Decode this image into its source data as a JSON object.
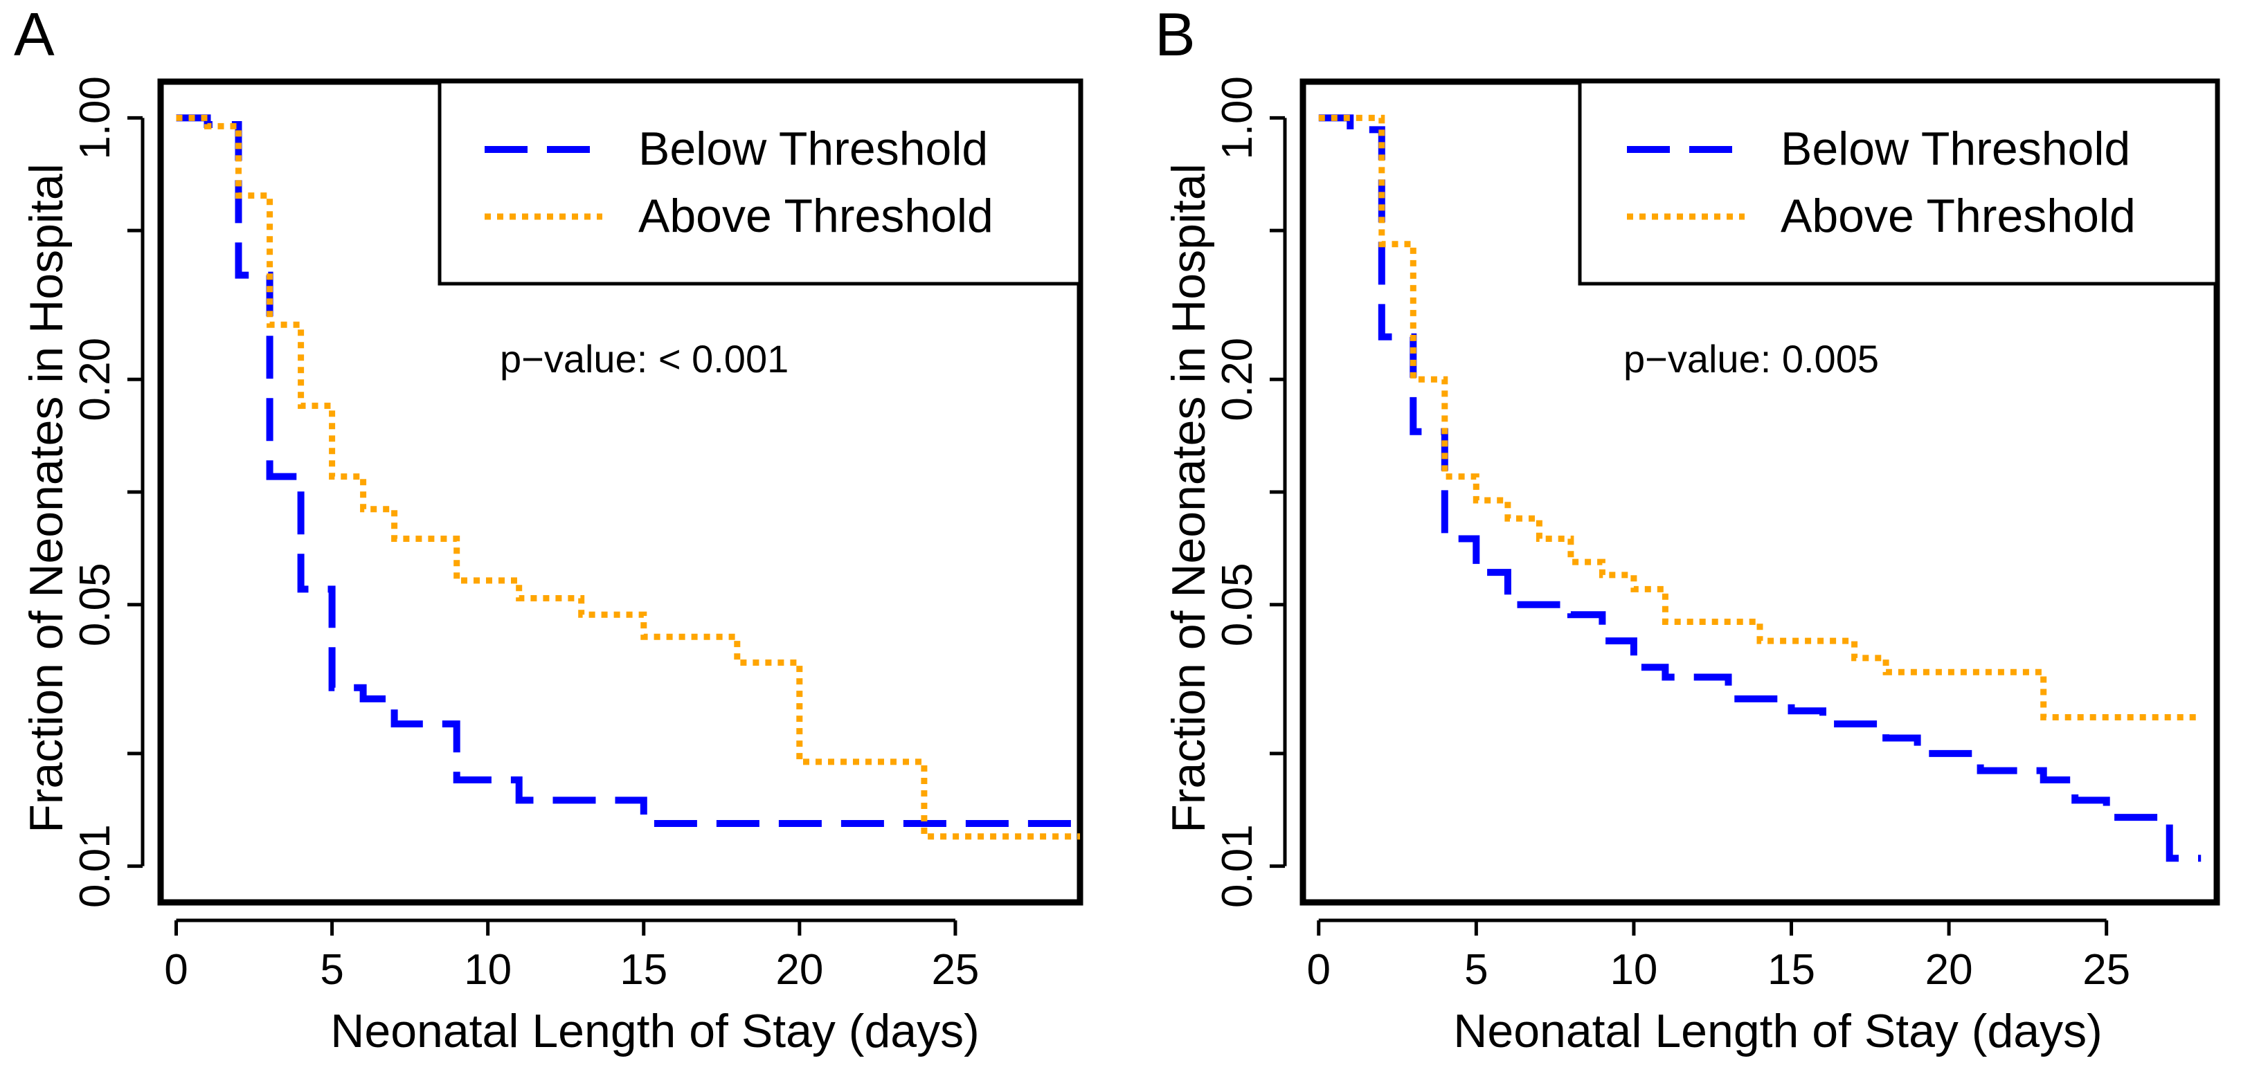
{
  "figure": {
    "panels": [
      "A",
      "B"
    ]
  },
  "chart_data": [
    {
      "type": "line",
      "panel_label": "A",
      "title": "",
      "xlabel": "Neonatal Length of Stay (days)",
      "ylabel": "Fraction of Neonates in Hospital",
      "y_scale": "log",
      "xlim": [
        -0.5,
        29
      ],
      "ylim": [
        0.008,
        1.25
      ],
      "x_ticks": [
        0,
        5,
        10,
        15,
        20,
        25
      ],
      "x_tick_labels": [
        "0",
        "5",
        "10",
        "15",
        "20",
        "25"
      ],
      "y_ticks_major": [
        1.0,
        0.2,
        0.05,
        0.01
      ],
      "y_tick_labels": [
        "1.00",
        "0.20",
        "0.05",
        "0.01"
      ],
      "y_ticks_minor": [
        0.5,
        0.1,
        0.02
      ],
      "grid": false,
      "legend_position": "top-right",
      "annotation": "p−value: < 0.001",
      "series": [
        {
          "name": "Below Threshold",
          "color": "#0000ff",
          "dash": "long-dash",
          "steps": [
            [
              0,
              1.0
            ],
            [
              1,
              0.96
            ],
            [
              2,
              0.38
            ],
            [
              3,
              0.11
            ],
            [
              4,
              0.055
            ],
            [
              5,
              0.03
            ],
            [
              6,
              0.028
            ],
            [
              7,
              0.024
            ],
            [
              9,
              0.017
            ],
            [
              11,
              0.015
            ],
            [
              15,
              0.013
            ],
            [
              29,
              0.013
            ]
          ]
        },
        {
          "name": "Above Threshold",
          "color": "#ffa500",
          "dash": "dotted",
          "steps": [
            [
              0,
              1.0
            ],
            [
              1,
              0.95
            ],
            [
              2,
              0.62
            ],
            [
              3,
              0.28
            ],
            [
              4,
              0.17
            ],
            [
              5,
              0.11
            ],
            [
              6,
              0.09
            ],
            [
              7,
              0.075
            ],
            [
              9,
              0.058
            ],
            [
              11,
              0.052
            ],
            [
              13,
              0.047
            ],
            [
              15,
              0.041
            ],
            [
              18,
              0.035
            ],
            [
              20,
              0.019
            ],
            [
              24,
              0.012
            ],
            [
              29,
              0.012
            ]
          ]
        }
      ]
    },
    {
      "type": "line",
      "panel_label": "B",
      "title": "",
      "xlabel": "Neonatal Length of Stay (days)",
      "ylabel": "Fraction of Neonates in Hospital",
      "y_scale": "log",
      "xlim": [
        -0.5,
        28.5
      ],
      "ylim": [
        0.008,
        1.25
      ],
      "x_ticks": [
        0,
        5,
        10,
        15,
        20,
        25
      ],
      "x_tick_labels": [
        "0",
        "5",
        "10",
        "15",
        "20",
        "25"
      ],
      "y_ticks_major": [
        1.0,
        0.2,
        0.05,
        0.01
      ],
      "y_tick_labels": [
        "1.00",
        "0.20",
        "0.05",
        "0.01"
      ],
      "y_ticks_minor": [
        0.5,
        0.1,
        0.02
      ],
      "grid": false,
      "legend_position": "top-right",
      "annotation": "p−value: 0.005",
      "series": [
        {
          "name": "Below Threshold",
          "color": "#0000ff",
          "dash": "long-dash",
          "steps": [
            [
              0,
              1.0
            ],
            [
              1,
              0.93
            ],
            [
              2,
              0.26
            ],
            [
              3,
              0.145
            ],
            [
              4,
              0.075
            ],
            [
              5,
              0.061
            ],
            [
              6,
              0.05
            ],
            [
              8,
              0.047
            ],
            [
              9,
              0.04
            ],
            [
              10,
              0.034
            ],
            [
              11,
              0.032
            ],
            [
              13,
              0.028
            ],
            [
              15,
              0.026
            ],
            [
              16,
              0.024
            ],
            [
              18,
              0.022
            ],
            [
              19,
              0.02
            ],
            [
              21,
              0.018
            ],
            [
              23,
              0.017
            ],
            [
              24,
              0.015
            ],
            [
              25,
              0.0135
            ],
            [
              27,
              0.0105
            ],
            [
              28,
              0.0105
            ]
          ]
        },
        {
          "name": "Above Threshold",
          "color": "#ffa500",
          "dash": "dotted",
          "steps": [
            [
              0,
              1.0
            ],
            [
              2,
              0.46
            ],
            [
              3,
              0.2
            ],
            [
              4,
              0.11
            ],
            [
              5,
              0.095
            ],
            [
              6,
              0.085
            ],
            [
              7,
              0.075
            ],
            [
              8,
              0.065
            ],
            [
              9,
              0.06
            ],
            [
              10,
              0.055
            ],
            [
              11,
              0.045
            ],
            [
              14,
              0.04
            ],
            [
              17,
              0.036
            ],
            [
              18,
              0.033
            ],
            [
              23,
              0.025
            ],
            [
              28,
              0.025
            ]
          ]
        }
      ]
    }
  ]
}
